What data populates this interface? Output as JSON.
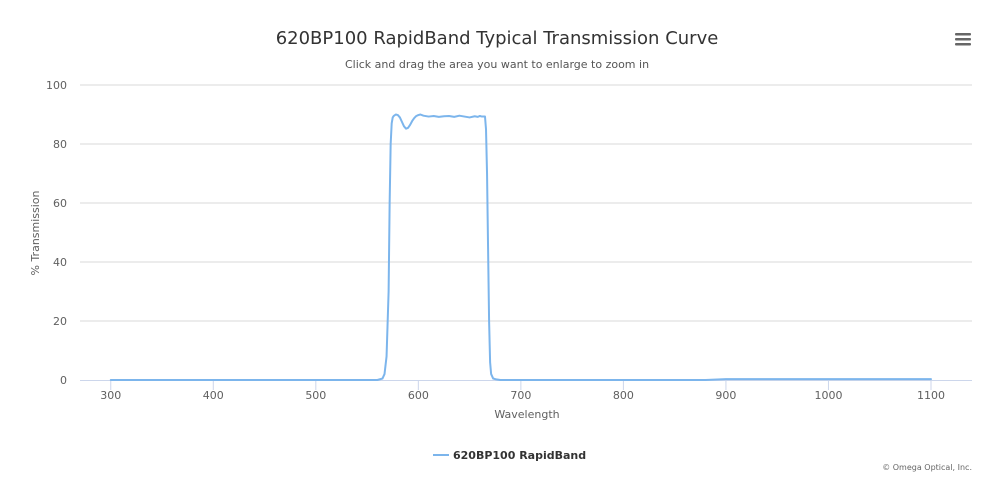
{
  "colors": {
    "series": "#7cb5ec",
    "gridline": "#d8d8d8",
    "axis": "#ccd6eb",
    "title": "#333333"
  },
  "icons": {
    "menu": "hamburger-menu-icon"
  },
  "chart_data": {
    "type": "line",
    "title": "620BP100 RapidBand Typical Transmission Curve",
    "subtitle": "Click and drag the area you want to enlarge to zoom in",
    "xlabel": "Wavelength",
    "ylabel": "% Transmission",
    "xlim": [
      270,
      1140
    ],
    "ylim": [
      0,
      100
    ],
    "x_ticks": [
      300,
      400,
      500,
      600,
      700,
      800,
      900,
      1000,
      1100
    ],
    "y_ticks": [
      0,
      20,
      40,
      60,
      80,
      100
    ],
    "grid": true,
    "legend_position": "bottom-center",
    "credits": "© Omega Optical, Inc.",
    "series": [
      {
        "name": "620BP100 RapidBand",
        "x": [
          300,
          400,
          500,
          560,
          565,
          567,
          569,
          571,
          572,
          573,
          574,
          575,
          576,
          578,
          580,
          582,
          584,
          586,
          588,
          590,
          592,
          594,
          596,
          598,
          600,
          602,
          605,
          610,
          615,
          620,
          625,
          630,
          635,
          640,
          645,
          650,
          655,
          658,
          660,
          662,
          665,
          666,
          667,
          668,
          669,
          670,
          671,
          673,
          676,
          680,
          700,
          800,
          880,
          900,
          950,
          1000,
          1050,
          1100
        ],
        "y": [
          0,
          0,
          0,
          0,
          0.5,
          2,
          8,
          30,
          60,
          80,
          87,
          89,
          89.5,
          90,
          89.8,
          89,
          87.5,
          86,
          85.2,
          85.5,
          86.5,
          87.8,
          88.8,
          89.5,
          89.8,
          90,
          89.6,
          89.3,
          89.5,
          89.2,
          89.4,
          89.5,
          89.2,
          89.6,
          89.3,
          89.0,
          89.4,
          89.2,
          89.5,
          89.3,
          89.3,
          85,
          70,
          45,
          20,
          6,
          2,
          0.5,
          0.2,
          0,
          0,
          0,
          0,
          0.3,
          0.3,
          0.3,
          0.3,
          0.3
        ]
      }
    ]
  }
}
